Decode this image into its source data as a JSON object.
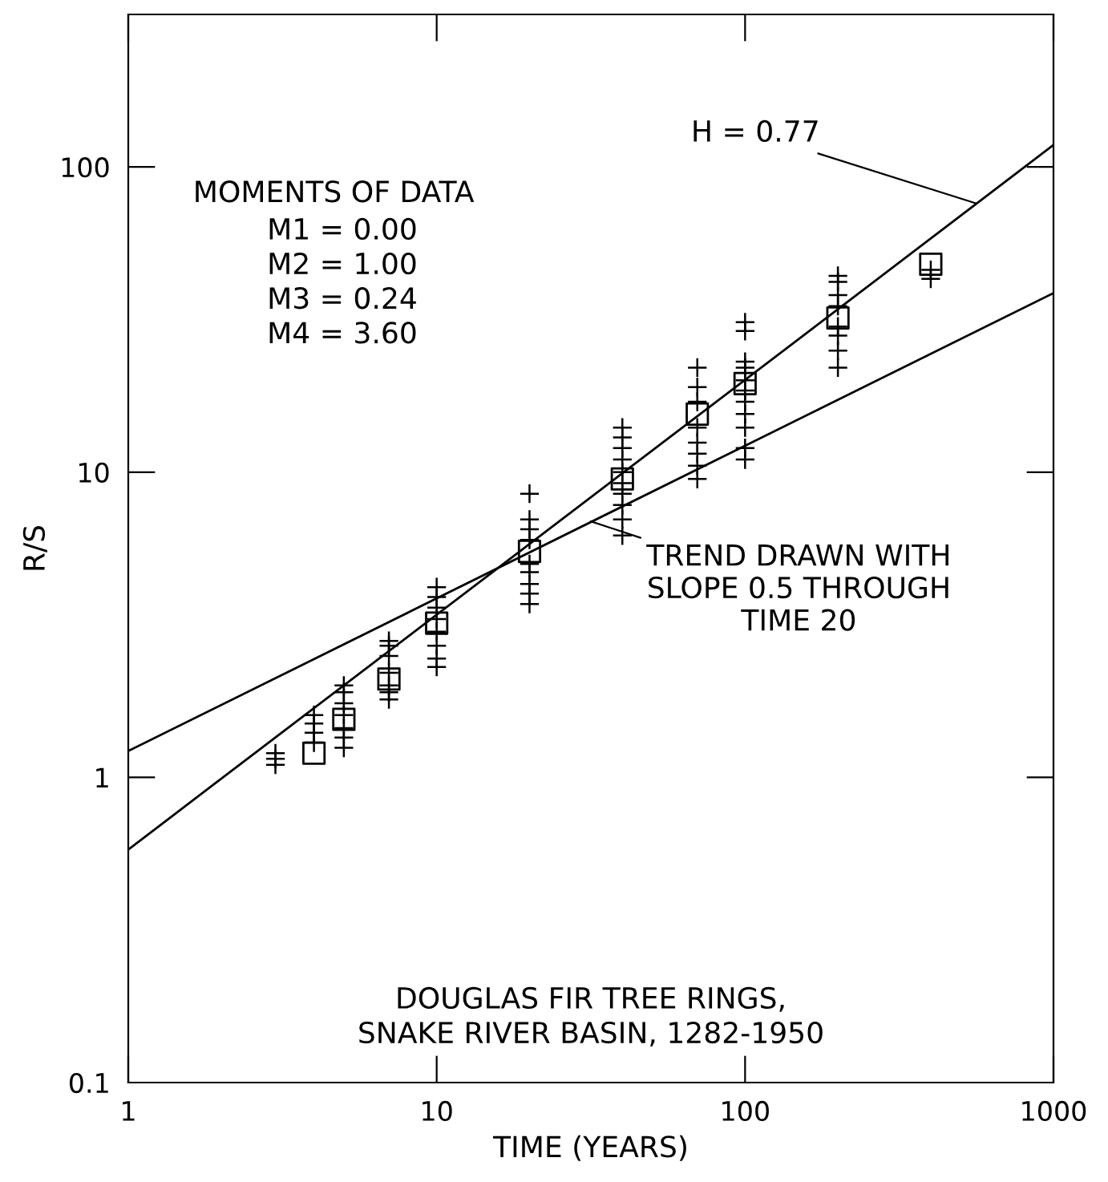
{
  "chart_data": {
    "type": "scatter",
    "xlabel": "TIME (YEARS)",
    "ylabel": "R/S",
    "log": "xy",
    "xlim": [
      1,
      1000
    ],
    "ylim": [
      0.1,
      316
    ],
    "xticks": [
      1,
      10,
      100,
      1000
    ],
    "yticks": [
      0.1,
      1,
      10,
      100
    ],
    "grid": false,
    "legend": false,
    "series": [
      {
        "type": "line",
        "color": "#000000",
        "x": [
          1,
          1000
        ],
        "values": [
          0.58,
          118
        ],
        "line_style": "solid",
        "marker": "none"
      },
      {
        "type": "line",
        "color": "#000000",
        "x": [
          1,
          1000
        ],
        "values": [
          1.22,
          38.6
        ],
        "line_style": "solid",
        "marker": "none"
      },
      {
        "color": "#000000",
        "marker": "cross",
        "x": [
          3,
          3,
          3,
          4,
          4,
          4,
          4,
          5,
          5,
          5,
          5,
          5,
          5,
          5,
          7,
          7,
          7,
          7,
          7,
          7,
          7,
          10,
          10,
          10,
          10,
          10,
          10,
          10,
          10,
          20,
          20,
          20,
          20,
          20,
          20,
          20,
          20,
          20,
          40,
          40,
          40,
          40,
          40,
          40,
          40,
          40,
          40,
          40,
          70,
          70,
          70,
          70,
          70,
          70,
          70,
          70,
          100,
          100,
          100,
          100,
          100,
          100,
          100,
          100,
          100,
          100,
          100,
          200,
          200,
          200,
          200,
          200,
          200,
          200,
          200,
          400,
          400
        ],
        "values": [
          1.1,
          1.15,
          1.2,
          1.3,
          1.4,
          1.5,
          1.6,
          1.25,
          1.35,
          1.45,
          1.6,
          1.75,
          1.9,
          2.0,
          1.8,
          1.9,
          2.0,
          2.2,
          2.5,
          2.7,
          2.8,
          2.3,
          2.45,
          2.7,
          3.0,
          3.3,
          3.6,
          3.9,
          4.2,
          3.7,
          4.0,
          4.3,
          4.7,
          5.0,
          6.0,
          6.5,
          7.0,
          8.5,
          6.2,
          7.0,
          7.8,
          8.5,
          9.2,
          10,
          11,
          12,
          13,
          14,
          9.5,
          10.5,
          11.5,
          12.5,
          14,
          17,
          19,
          22,
          11,
          12,
          14,
          15.5,
          17,
          18.5,
          20,
          22,
          23,
          29,
          31,
          22,
          25,
          28,
          30,
          35,
          38,
          42,
          44,
          43,
          46
        ]
      },
      {
        "color": "#000000",
        "marker": "square",
        "x": [
          4,
          5,
          7,
          10,
          20,
          40,
          70,
          100,
          200,
          400
        ],
        "values": [
          1.2,
          1.55,
          2.1,
          3.2,
          5.5,
          9.5,
          15.5,
          19.5,
          32,
          48
        ]
      }
    ],
    "annotations": [
      {
        "text": "H = 0.77",
        "x": 560,
        "y": 76
      },
      {
        "text": "TREND DRAWN WITH\nSLOPE 0.5 THROUGH\nTIME 20",
        "x": 31.6,
        "y": 6.9
      },
      "MOMENTS OF DATA",
      "M1 = 0.00\nM2 = 1.00\nM3 = 0.24\nM4 = 3.60",
      "DOUGLAS FIR TREE RINGS,\nSNAKE RIVER BASIN, 1282-1950"
    ]
  }
}
